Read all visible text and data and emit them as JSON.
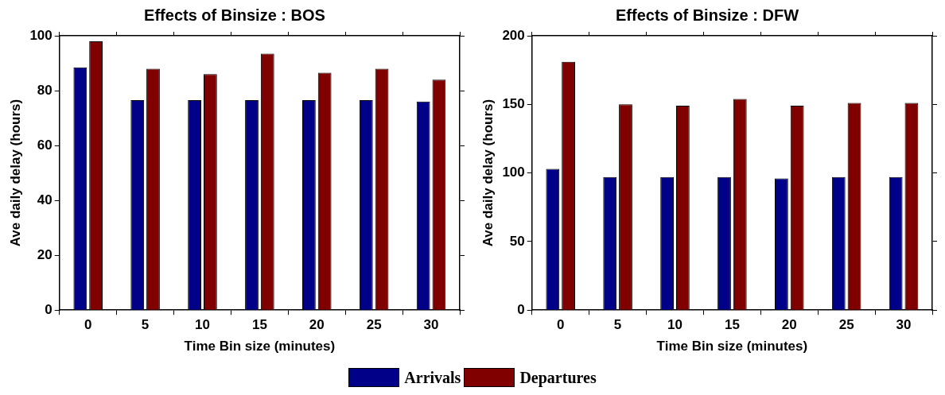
{
  "chart_data": [
    {
      "type": "bar",
      "title": "Effects of Binsize : BOS",
      "xlabel": "Time Bin size (minutes)",
      "ylabel": "Ave daily delay (hours)",
      "categories": [
        "0",
        "5",
        "10",
        "15",
        "20",
        "25",
        "30"
      ],
      "series": [
        {
          "name": "Arrivals",
          "color": "#000088",
          "values": [
            88.5,
            76.5,
            76.5,
            76.5,
            76.5,
            76.5,
            76
          ]
        },
        {
          "name": "Departures",
          "color": "#800000",
          "values": [
            98,
            88,
            86,
            93.5,
            86.5,
            88,
            84
          ]
        }
      ],
      "ylim": [
        0,
        100
      ],
      "yticks": [
        0,
        20,
        40,
        60,
        80,
        100
      ],
      "grid": false,
      "legend": "bottom"
    },
    {
      "type": "bar",
      "title": "Effects of Binsize : DFW",
      "xlabel": "Time Bin size (minutes)",
      "ylabel": "Ave daily delay (hours)",
      "categories": [
        "0",
        "5",
        "10",
        "15",
        "20",
        "25",
        "30"
      ],
      "series": [
        {
          "color": "#000088",
          "values": [
            103,
            97,
            97,
            97,
            96,
            97,
            97
          ]
        },
        {
          "color": "#800000",
          "values": [
            181,
            150,
            149,
            154,
            149,
            151,
            151
          ]
        }
      ],
      "ylim": [
        0,
        200
      ],
      "yticks": [
        0,
        50,
        100,
        150,
        200
      ],
      "grid": false
    }
  ]
}
